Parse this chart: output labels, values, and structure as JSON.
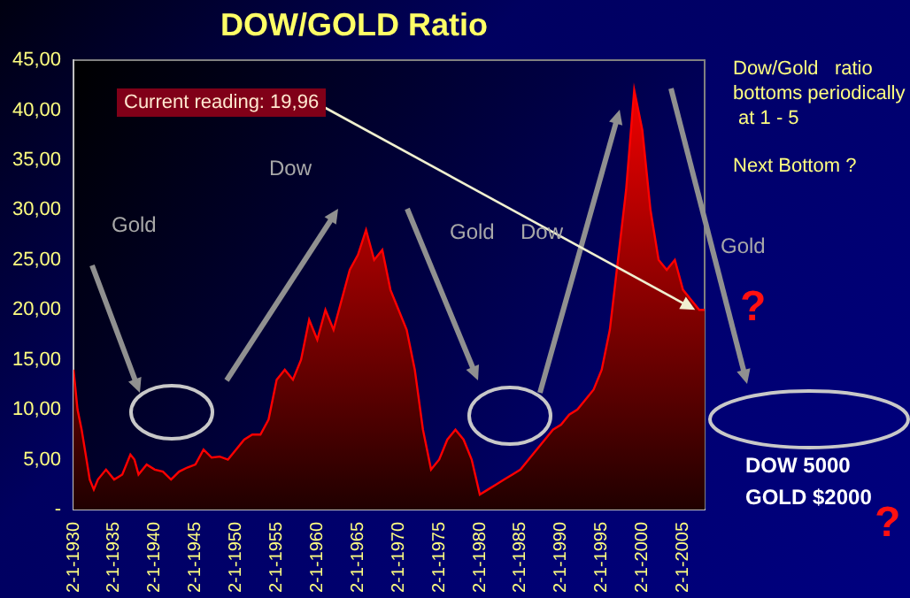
{
  "chart_data": {
    "type": "area",
    "title": "DOW/GOLD Ratio",
    "x": [
      "1930",
      "1930-07",
      "1931",
      "1932",
      "1932-07",
      "1933",
      "1934",
      "1935",
      "1936",
      "1937",
      "1937-07",
      "1938",
      "1939",
      "1940",
      "1941",
      "1942",
      "1943",
      "1944",
      "1945",
      "1946",
      "1947",
      "1948",
      "1949",
      "1950",
      "1951",
      "1952",
      "1953",
      "1954",
      "1955",
      "1956",
      "1957",
      "1958",
      "1959",
      "1960",
      "1961",
      "1962",
      "1963",
      "1964",
      "1965",
      "1966",
      "1967",
      "1968",
      "1969",
      "1970",
      "1971",
      "1972",
      "1973",
      "1974",
      "1975",
      "1976",
      "1977",
      "1978",
      "1979",
      "1980",
      "1981",
      "1982",
      "1983",
      "1984",
      "1985",
      "1986",
      "1987",
      "1988",
      "1989",
      "1990",
      "1991",
      "1992",
      "1993",
      "1994",
      "1995",
      "1996",
      "1997",
      "1998",
      "1999",
      "2000",
      "2001",
      "2002",
      "2003",
      "2004",
      "2005",
      "2006",
      "2007",
      "2007-09"
    ],
    "series": [
      {
        "color": "#ff0000",
        "values": [
          14,
          10,
          8,
          3,
          2,
          3,
          4,
          3,
          3.5,
          5.5,
          5,
          3.5,
          4.5,
          4,
          3.8,
          3,
          3.8,
          4.2,
          4.5,
          6,
          5.2,
          5.3,
          5,
          6,
          7,
          7.5,
          7.5,
          9,
          13,
          14,
          13,
          15,
          19,
          17,
          20,
          18,
          21,
          24,
          25.5,
          28,
          25,
          26,
          22,
          20,
          18,
          14,
          8,
          4,
          5,
          7,
          8,
          7,
          5,
          1.5,
          2,
          2.5,
          3,
          3.5,
          4,
          5,
          6,
          7,
          8,
          8.5,
          9.5,
          10,
          11,
          12,
          14,
          18,
          25,
          32,
          42,
          38,
          30,
          25,
          24,
          25,
          22,
          21,
          20,
          20
        ]
      }
    ],
    "xlim": [
      "1930",
      "2007-09"
    ],
    "xticks": [
      {
        "value": "1930-01-02",
        "label": "2-1-1930"
      },
      {
        "value": "1935-01-02",
        "label": "2-1-1935"
      },
      {
        "value": "1940-01-02",
        "label": "2-1-1940"
      },
      {
        "value": "1945-01-02",
        "label": "2-1-1945"
      },
      {
        "value": "1950-01-02",
        "label": "2-1-1950"
      },
      {
        "value": "1955-01-02",
        "label": "2-1-1955"
      },
      {
        "value": "1960-01-02",
        "label": "2-1-1960"
      },
      {
        "value": "1965-01-02",
        "label": "2-1-1965"
      },
      {
        "value": "1970-01-02",
        "label": "2-1-1970"
      },
      {
        "value": "1975-01-02",
        "label": "2-1-1975"
      },
      {
        "value": "1980-01-02",
        "label": "2-1-1980"
      },
      {
        "value": "1985-01-02",
        "label": "2-1-1985"
      },
      {
        "value": "1990-01-02",
        "label": "2-1-1990"
      },
      {
        "value": "1995-01-02",
        "label": "2-1-1995"
      },
      {
        "value": "2000-01-02",
        "label": "2-1-2000"
      },
      {
        "value": "2005-01-02",
        "label": "2-1-2005"
      }
    ],
    "ylim": [
      0,
      45
    ],
    "yticks": [
      {
        "value": 0,
        "label": "-"
      },
      {
        "value": 5,
        "label": "5,00"
      },
      {
        "value": 10,
        "label": "10,00"
      },
      {
        "value": 15,
        "label": "15,00"
      },
      {
        "value": 20,
        "label": "20,00"
      },
      {
        "value": 25,
        "label": "25,00"
      },
      {
        "value": 30,
        "label": "30,00"
      },
      {
        "value": 35,
        "label": "35,00"
      },
      {
        "value": 40,
        "label": "40,00"
      },
      {
        "value": 45,
        "label": "45,00"
      }
    ],
    "annotations": [
      {
        "text": "Current reading: 19,96",
        "x": "2006-07",
        "y": 20
      },
      "Gold",
      "Dow",
      "Gold",
      "Dow",
      "Gold",
      "Dow/Gold   ratio\nbottoms periodically\n at 1 - 5",
      "Next Bottom ?",
      "?",
      "DOW 5000",
      "GOLD $2000",
      "?"
    ]
  }
}
